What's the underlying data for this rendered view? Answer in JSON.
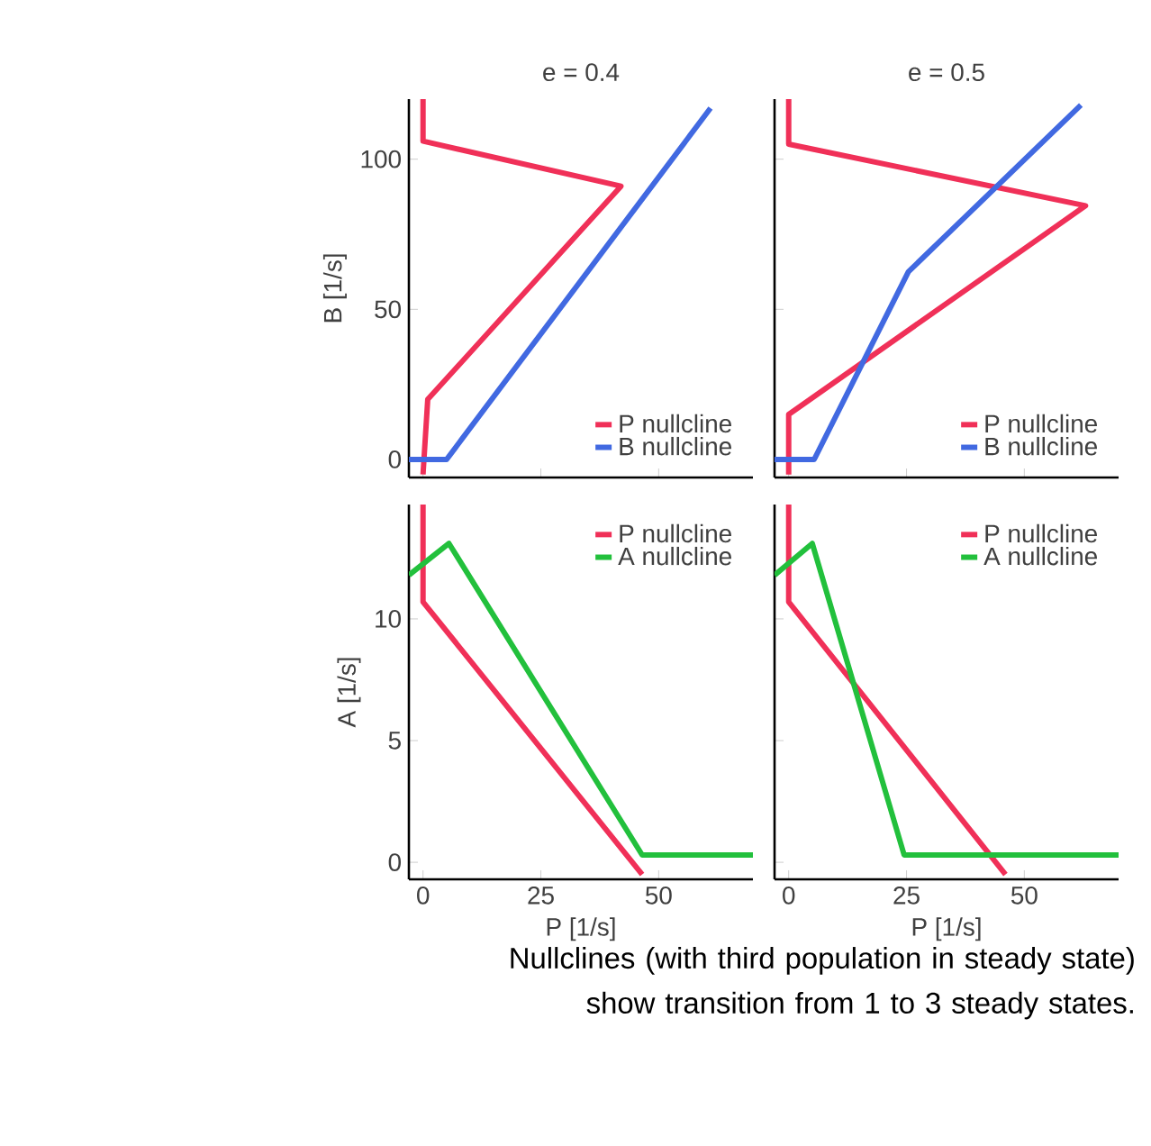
{
  "chart_data": [
    {
      "type": "line",
      "title": "e = 0.4",
      "ylabel": "B [1/s]",
      "xlim": [
        -3,
        70
      ],
      "ylim": [
        -6,
        120
      ],
      "xticks": [
        0,
        25,
        50
      ],
      "yticks": [
        0,
        50,
        100
      ],
      "tick_labels": "y",
      "legend": "bottom right",
      "series": [
        {
          "name": "P nullcline",
          "color": "#f03058",
          "x": [
            0,
            0,
            42,
            1,
            0
          ],
          "values": [
            120,
            106,
            91,
            20,
            -5
          ]
        },
        {
          "name": "B nullcline",
          "color": "#4169e1",
          "x": [
            -3,
            5,
            61
          ],
          "values": [
            0,
            0,
            117
          ]
        }
      ]
    },
    {
      "type": "line",
      "title": "e = 0.5",
      "xlim": [
        -3,
        70
      ],
      "ylim": [
        -6,
        120
      ],
      "xticks": [
        0,
        25,
        50
      ],
      "yticks": [
        0,
        50,
        100
      ],
      "tick_labels": false,
      "legend": "bottom right",
      "series": [
        {
          "name": "P nullcline",
          "color": "#f03058",
          "x": [
            0,
            0,
            63,
            0,
            0
          ],
          "values": [
            120,
            105,
            84.5,
            15,
            -5
          ]
        },
        {
          "name": "B nullcline",
          "color": "#4169e1",
          "x": [
            -3,
            5.4,
            25.4,
            62
          ],
          "values": [
            0,
            0,
            62.5,
            118
          ]
        }
      ]
    },
    {
      "type": "line",
      "xlabel": "P [1/s]",
      "ylabel": "A [1/s]",
      "xlim": [
        -3,
        70
      ],
      "ylim": [
        -0.7,
        14.7
      ],
      "xticks": [
        0,
        25,
        50
      ],
      "yticks": [
        0,
        5,
        10
      ],
      "legend": "top right",
      "series": [
        {
          "name": "P nullcline",
          "color": "#f03058",
          "x": [
            0,
            0,
            46.5
          ],
          "values": [
            14.7,
            10.7,
            -0.5
          ]
        },
        {
          "name": "A nullcline",
          "color": "#22c03c",
          "x": [
            -3,
            5.5,
            46.5,
            70
          ],
          "values": [
            11.8,
            13.1,
            0.3,
            0.3
          ]
        }
      ]
    },
    {
      "type": "line",
      "xlabel": "P [1/s]",
      "xlim": [
        -3,
        70
      ],
      "ylim": [
        -0.7,
        14.7
      ],
      "xticks": [
        0,
        25,
        50
      ],
      "yticks": [
        0,
        5,
        10
      ],
      "tick_labels": "x",
      "legend": "top right",
      "series": [
        {
          "name": "P nullcline",
          "color": "#f03058",
          "x": [
            0,
            0,
            46
          ],
          "values": [
            14.7,
            10.7,
            -0.5
          ]
        },
        {
          "name": "A nullcline",
          "color": "#22c03c",
          "x": [
            -3,
            5,
            24.5,
            70
          ],
          "values": [
            11.8,
            13.1,
            0.3,
            0.3
          ]
        }
      ],
      "annotations": [
        "Nullclines (with third population in steady state) show transition from 1 to 3 steady states."
      ]
    }
  ]
}
